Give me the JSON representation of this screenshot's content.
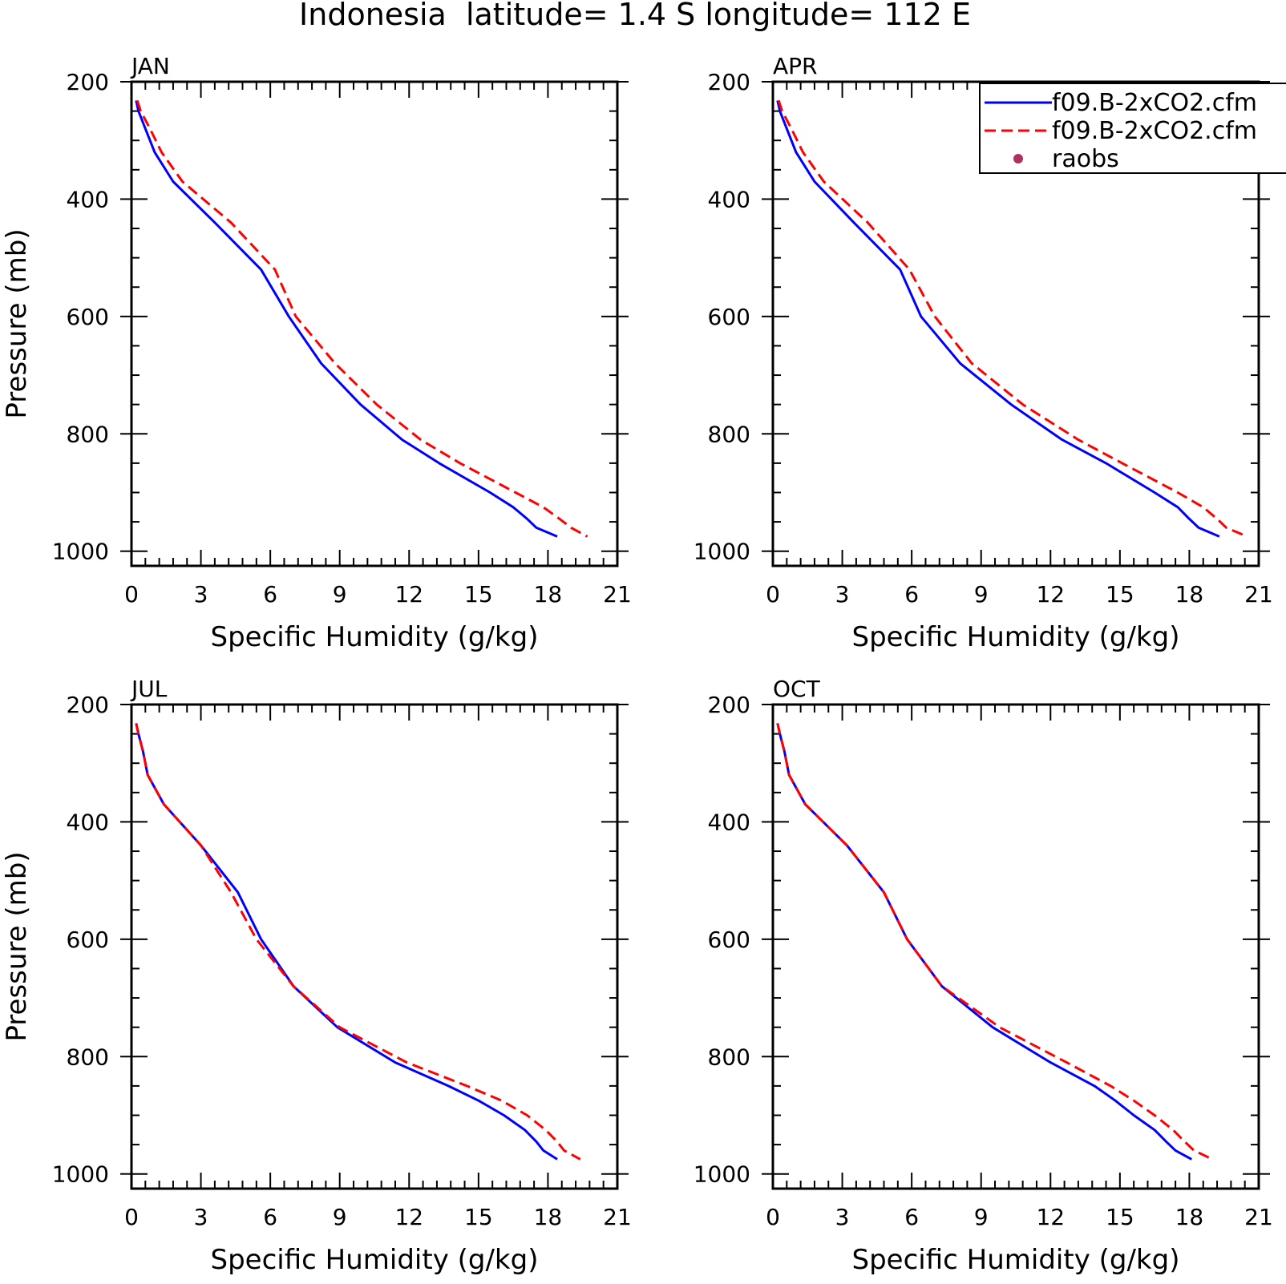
{
  "figure": {
    "title": "Indonesia  latitude= 1.4 S longitude= 112 E"
  },
  "legend": {
    "entries": [
      {
        "label": "f09.B-2xCO2.cfm",
        "color": "#0000ff",
        "style": "solid"
      },
      {
        "label": "f09.B-2xCO2.cfm",
        "color": "#ff0000",
        "style": "dashed"
      },
      {
        "label": "raobs",
        "color": "#b03060",
        "style": "marker"
      }
    ],
    "placement": "top-right of APR panel"
  },
  "chart_data": [
    {
      "type": "line",
      "title": "JAN",
      "xlabel": "Specific Humidity (g/kg)",
      "ylabel": "Pressure (mb)",
      "xlim": [
        0,
        21
      ],
      "ylim": [
        200,
        1025
      ],
      "y_inverted": true,
      "xticks": [
        "0",
        "3",
        "6",
        "9",
        "12",
        "15",
        "18",
        "21"
      ],
      "yticks": [
        "200",
        "400",
        "600",
        "800",
        "1000"
      ],
      "grid": false,
      "pressure": [
        232,
        250,
        280,
        320,
        370,
        440,
        520,
        600,
        680,
        750,
        810,
        850,
        900,
        925,
        945,
        960,
        975
      ],
      "series": [
        {
          "color": "#0000ff",
          "style": "solid",
          "values": [
            0.2,
            0.3,
            0.6,
            1.0,
            1.8,
            3.6,
            5.6,
            6.8,
            8.2,
            9.9,
            11.7,
            13.3,
            15.5,
            16.5,
            17.1,
            17.5,
            18.4
          ]
        },
        {
          "color": "#ff0000",
          "style": "dashed",
          "values": [
            0.25,
            0.4,
            0.8,
            1.3,
            2.2,
            4.3,
            6.2,
            7.1,
            8.8,
            10.6,
            12.5,
            14.2,
            16.6,
            17.8,
            18.5,
            19.0,
            19.7
          ]
        }
      ]
    },
    {
      "type": "line",
      "title": "APR",
      "xlabel": "Specific Humidity (g/kg)",
      "ylabel": "",
      "xlim": [
        0,
        21
      ],
      "ylim": [
        200,
        1025
      ],
      "y_inverted": true,
      "xticks": [
        "0",
        "3",
        "6",
        "9",
        "12",
        "15",
        "18",
        "21"
      ],
      "yticks": [
        "200",
        "400",
        "600",
        "800",
        "1000"
      ],
      "grid": false,
      "pressure": [
        232,
        250,
        280,
        320,
        370,
        440,
        520,
        600,
        680,
        750,
        810,
        850,
        900,
        925,
        945,
        960,
        975
      ],
      "series": [
        {
          "color": "#0000ff",
          "style": "solid",
          "values": [
            0.2,
            0.3,
            0.6,
            1.0,
            1.8,
            3.5,
            5.5,
            6.4,
            8.1,
            10.3,
            12.5,
            14.4,
            16.5,
            17.5,
            18.0,
            18.4,
            19.3
          ]
        },
        {
          "color": "#ff0000",
          "style": "dashed",
          "values": [
            0.25,
            0.4,
            0.8,
            1.3,
            2.2,
            4.1,
            5.9,
            7.0,
            8.6,
            10.8,
            13.2,
            15.1,
            17.5,
            18.6,
            19.2,
            19.6,
            20.5
          ]
        }
      ]
    },
    {
      "type": "line",
      "title": "JUL",
      "xlabel": "Specific Humidity (g/kg)",
      "ylabel": "Pressure (mb)",
      "xlim": [
        0,
        21
      ],
      "ylim": [
        200,
        1025
      ],
      "y_inverted": true,
      "xticks": [
        "0",
        "3",
        "6",
        "9",
        "12",
        "15",
        "18",
        "21"
      ],
      "yticks": [
        "200",
        "400",
        "600",
        "800",
        "1000"
      ],
      "grid": false,
      "pressure": [
        232,
        250,
        280,
        320,
        370,
        440,
        520,
        600,
        680,
        750,
        810,
        850,
        875,
        900,
        925,
        945,
        960,
        975
      ],
      "series": [
        {
          "color": "#0000ff",
          "style": "solid",
          "values": [
            0.2,
            0.3,
            0.5,
            0.7,
            1.4,
            3.0,
            4.6,
            5.6,
            7.0,
            8.9,
            11.4,
            13.7,
            15.0,
            16.1,
            17.0,
            17.5,
            17.8,
            18.4
          ]
        },
        {
          "color": "#ff0000",
          "style": "dashed",
          "values": [
            0.2,
            0.3,
            0.5,
            0.7,
            1.4,
            3.0,
            4.3,
            5.4,
            7.0,
            9.0,
            11.9,
            14.5,
            16.0,
            17.1,
            17.9,
            18.4,
            18.7,
            19.4
          ]
        }
      ]
    },
    {
      "type": "line",
      "title": "OCT",
      "xlabel": "Specific Humidity (g/kg)",
      "ylabel": "",
      "xlim": [
        0,
        21
      ],
      "ylim": [
        200,
        1025
      ],
      "y_inverted": true,
      "xticks": [
        "0",
        "3",
        "6",
        "9",
        "12",
        "15",
        "18",
        "21"
      ],
      "yticks": [
        "200",
        "400",
        "600",
        "800",
        "1000"
      ],
      "grid": false,
      "pressure": [
        232,
        250,
        280,
        320,
        370,
        440,
        520,
        600,
        680,
        750,
        810,
        850,
        875,
        900,
        925,
        945,
        960,
        975
      ],
      "series": [
        {
          "color": "#0000ff",
          "style": "solid",
          "values": [
            0.2,
            0.3,
            0.5,
            0.7,
            1.4,
            3.2,
            4.8,
            5.8,
            7.3,
            9.5,
            12.0,
            13.9,
            14.8,
            15.6,
            16.5,
            17.0,
            17.4,
            18.1
          ]
        },
        {
          "color": "#ff0000",
          "style": "dashed",
          "values": [
            0.2,
            0.3,
            0.5,
            0.7,
            1.4,
            3.2,
            4.8,
            5.8,
            7.3,
            9.8,
            12.7,
            14.6,
            15.6,
            16.5,
            17.3,
            17.8,
            18.2,
            19.0
          ]
        }
      ]
    }
  ]
}
